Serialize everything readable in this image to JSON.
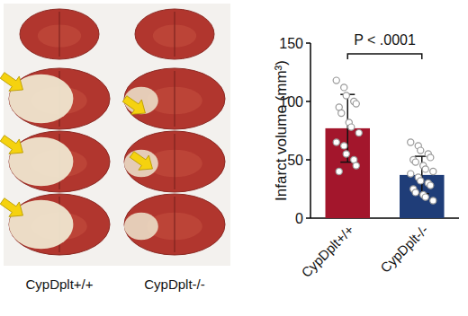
{
  "chart_data": {
    "type": "bar",
    "categories": [
      "CypDplt+/+",
      "CypDplt-/-"
    ],
    "values": [
      77,
      37
    ],
    "errors": [
      29,
      16
    ],
    "points": [
      [
        118,
        112,
        105,
        100,
        98,
        95,
        90,
        82,
        78,
        73,
        65,
        62,
        55,
        50,
        45,
        40
      ],
      [
        65,
        62,
        58,
        55,
        52,
        50,
        48,
        45,
        42,
        40,
        38,
        35,
        32,
        30,
        28,
        25,
        22,
        20,
        18,
        15
      ]
    ],
    "colors": [
      "#a3162c",
      "#1f3d78"
    ],
    "y_label": "Infarct volume (mm³)",
    "annotation": "P < .0001",
    "ylim": [
      0,
      150
    ],
    "yticks": [
      0,
      50,
      100,
      150
    ]
  },
  "figure": {
    "image_labels": [
      "CypDplt+/+",
      "CypDplt-/-"
    ]
  }
}
